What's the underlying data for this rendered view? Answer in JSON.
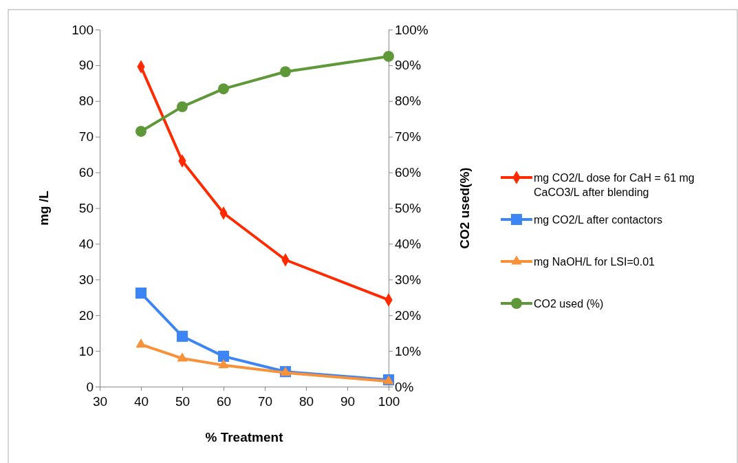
{
  "chart_data": {
    "type": "line",
    "xlabel": "% Treatment",
    "ylabel": "mg /L",
    "y2label": "CO2 used(%)",
    "xlim": [
      30,
      100
    ],
    "xticks": [
      30,
      40,
      50,
      60,
      70,
      80,
      90,
      100
    ],
    "ylim": [
      0,
      100
    ],
    "yticks": [
      0,
      10,
      20,
      30,
      40,
      50,
      60,
      70,
      80,
      90,
      100
    ],
    "y2lim": [
      0,
      1
    ],
    "y2ticks": [
      {
        "value": 0,
        "label": "0%"
      },
      {
        "value": 0.1,
        "label": "10%"
      },
      {
        "value": 0.2,
        "label": "20%"
      },
      {
        "value": 0.3,
        "label": "30%"
      },
      {
        "value": 0.4,
        "label": "40%"
      },
      {
        "value": 0.5,
        "label": "50%"
      },
      {
        "value": 0.6,
        "label": "60%"
      },
      {
        "value": 0.7,
        "label": "70%"
      },
      {
        "value": 0.8,
        "label": "80%"
      },
      {
        "value": 0.9,
        "label": "90%"
      },
      {
        "value": 1,
        "label": "100%"
      }
    ],
    "x": [
      40,
      50,
      60,
      75,
      100
    ],
    "legend": "right",
    "series": [
      {
        "name": "mg CO2/L dose for CaH = 61 mg CaCO3/L after blending",
        "color": "#ff2a00",
        "marker": "diamond",
        "values": [
          89.6,
          63.2,
          48.6,
          35.5,
          24.3
        ]
      },
      {
        "name": "mg CO2/L after contactors",
        "color": "#3d85f5",
        "marker": "square",
        "values": [
          26.2,
          14.1,
          8.5,
          4.2,
          1.9
        ]
      },
      {
        "name": "mg NaOH/L for LSI=0.01",
        "color": "#f7923a",
        "marker": "triangle",
        "values": [
          11.8,
          7.9,
          6.0,
          3.9,
          1.5
        ]
      },
      {
        "name": "CO2 used (%)",
        "color": "#5f9838",
        "marker": "circle",
        "axis": "y2",
        "values": [
          0.715,
          0.784,
          0.834,
          0.882,
          0.925
        ]
      }
    ]
  }
}
